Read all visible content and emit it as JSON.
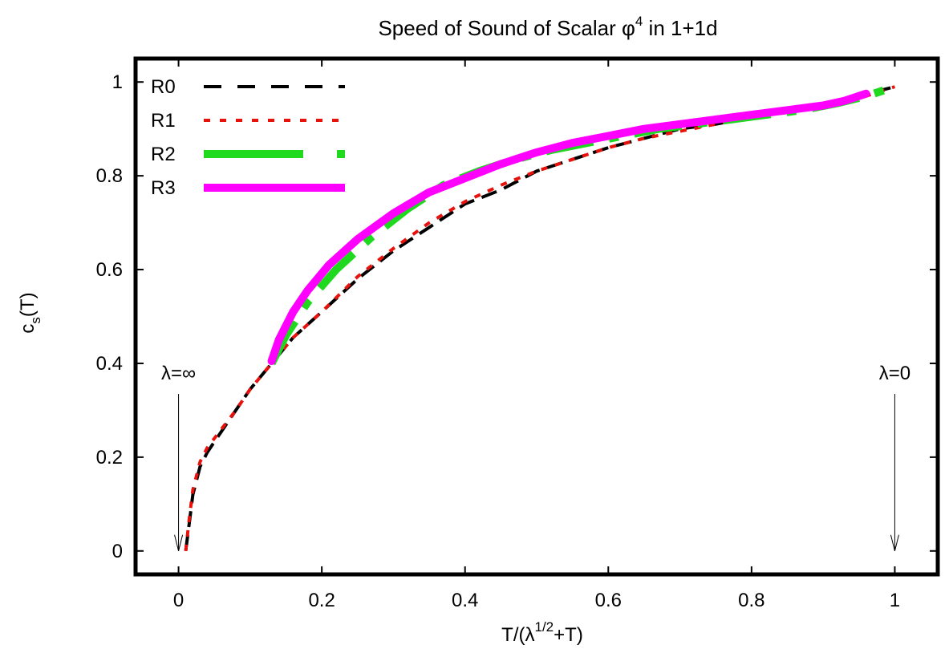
{
  "chart_data": {
    "type": "line",
    "title": {
      "prefix": "Speed of Sound of Scalar ",
      "symbol": "φ",
      "sup": "4",
      "suffix": " in 1+1d"
    },
    "xlabel": {
      "prefix": "T/(λ",
      "sup": "1/2",
      "suffix": "+T)"
    },
    "ylabel": {
      "base": "c",
      "sub": "s",
      "suffix": "(T)"
    },
    "xlim": [
      -0.06,
      1.06
    ],
    "ylim": [
      -0.05,
      1.05
    ],
    "x_ticks": [
      0,
      0.2,
      0.4,
      0.6,
      0.8,
      1
    ],
    "x_tick_labels": [
      "0",
      "0.2",
      "0.4",
      "0.6",
      "0.8",
      "1"
    ],
    "y_ticks": [
      0,
      0.2,
      0.4,
      0.6,
      0.8,
      1
    ],
    "y_tick_labels": [
      "0",
      "0.2",
      "0.4",
      "0.6",
      "0.8",
      "1"
    ],
    "legend_position": "top-left",
    "grid": false,
    "series": [
      {
        "name": "R0",
        "color": "#000000",
        "style": "dashed",
        "x": [
          0.01,
          0.015,
          0.02,
          0.03,
          0.04,
          0.06,
          0.08,
          0.1,
          0.13,
          0.16,
          0.2,
          0.25,
          0.3,
          0.35,
          0.4,
          0.45,
          0.5,
          0.55,
          0.6,
          0.65,
          0.7,
          0.75,
          0.8,
          0.85,
          0.9,
          0.95,
          1.0
        ],
        "y": [
          0.0,
          0.06,
          0.12,
          0.18,
          0.21,
          0.255,
          0.3,
          0.345,
          0.4,
          0.455,
          0.51,
          0.58,
          0.64,
          0.69,
          0.74,
          0.77,
          0.81,
          0.835,
          0.86,
          0.88,
          0.9,
          0.91,
          0.925,
          0.94,
          0.955,
          0.97,
          0.99
        ]
      },
      {
        "name": "R1",
        "color": "#e8120c",
        "style": "dotted",
        "x": [
          0.01,
          0.015,
          0.02,
          0.03,
          0.04,
          0.06,
          0.08,
          0.1,
          0.13,
          0.16,
          0.2,
          0.25,
          0.3,
          0.35,
          0.4,
          0.45,
          0.5,
          0.55,
          0.6,
          0.65,
          0.7,
          0.75,
          0.8,
          0.85,
          0.9,
          0.95,
          1.0
        ],
        "y": [
          0.0,
          0.07,
          0.13,
          0.19,
          0.22,
          0.26,
          0.3,
          0.345,
          0.4,
          0.455,
          0.51,
          0.585,
          0.645,
          0.7,
          0.745,
          0.78,
          0.81,
          0.835,
          0.86,
          0.88,
          0.895,
          0.91,
          0.925,
          0.935,
          0.95,
          0.965,
          0.99
        ]
      },
      {
        "name": "R2",
        "color": "#1fd91f",
        "style": "dashdot",
        "x": [
          0.13,
          0.15,
          0.18,
          0.22,
          0.27,
          0.32,
          0.37,
          0.42,
          0.47,
          0.52,
          0.57,
          0.62,
          0.67,
          0.72,
          0.77,
          0.82,
          0.87,
          0.92,
          0.96,
          0.99
        ],
        "y": [
          0.4,
          0.46,
          0.53,
          0.6,
          0.67,
          0.73,
          0.78,
          0.81,
          0.835,
          0.855,
          0.87,
          0.885,
          0.9,
          0.91,
          0.92,
          0.93,
          0.94,
          0.955,
          0.97,
          0.985
        ]
      },
      {
        "name": "R3",
        "color": "#ff00ff",
        "style": "solid",
        "x": [
          0.13,
          0.14,
          0.16,
          0.18,
          0.21,
          0.25,
          0.3,
          0.35,
          0.4,
          0.45,
          0.5,
          0.55,
          0.6,
          0.65,
          0.7,
          0.75,
          0.8,
          0.85,
          0.9,
          0.93,
          0.96
        ],
        "y": [
          0.405,
          0.45,
          0.51,
          0.555,
          0.61,
          0.665,
          0.72,
          0.765,
          0.795,
          0.825,
          0.85,
          0.87,
          0.885,
          0.9,
          0.91,
          0.92,
          0.93,
          0.94,
          0.95,
          0.96,
          0.975
        ]
      }
    ],
    "annotations": [
      {
        "text": "λ=∞",
        "x": 0.0,
        "arrow_from_y": 0.335,
        "arrow_to_y": 0.0
      },
      {
        "text": "λ=0",
        "x": 1.0,
        "arrow_from_y": 0.335,
        "arrow_to_y": 0.0
      }
    ]
  }
}
